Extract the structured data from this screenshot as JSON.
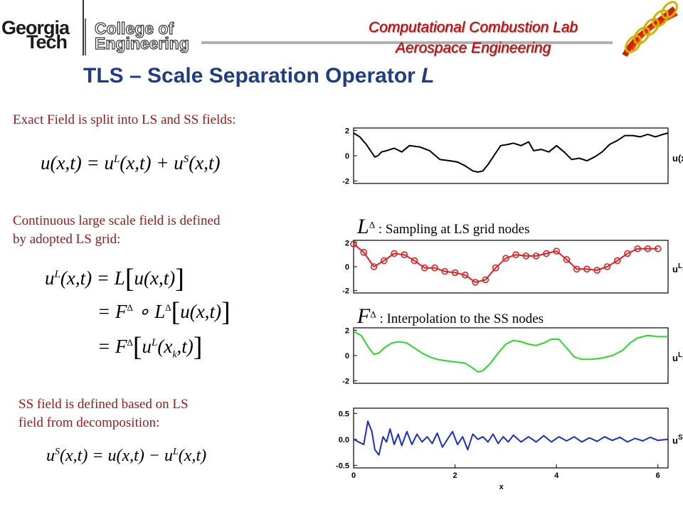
{
  "header": {
    "georgia": "Georgia",
    "tech": "Tech",
    "college_line1": "College of",
    "college_line2": "Engineering",
    "lab_line1": "Computational Combustion Lab",
    "lab_line2": "Aerospace Engineering"
  },
  "title": {
    "main": "TLS – Scale Separation Operator ",
    "italic": "L"
  },
  "text": {
    "exact_field": "Exact Field is split into LS and SS fields:",
    "continuous_1": "Continuous large scale field is defined",
    "continuous_2": "by adopted LS grid:",
    "ss_field_1": "SS field is defined based on LS",
    "ss_field_2": "field from decomposition:",
    "sampling": ": Sampling at LS grid nodes",
    "interp": ":  Interpolation to the SS nodes"
  },
  "colors": {
    "title": "#1f3c88",
    "body_text": "#a01818",
    "lab": "#cc0000",
    "ul_samples": "#e02020",
    "ul_interp": "#22dd22",
    "us": "#1a2ecc"
  },
  "chart_data": [
    {
      "type": "line",
      "ylabel": "u(x)",
      "yticks": [
        -2,
        0,
        2
      ],
      "ylim": [
        -2.2,
        2.2
      ],
      "xlim": [
        0,
        6.2
      ],
      "series": [
        {
          "x": [
            0,
            0.12,
            0.25,
            0.35,
            0.42,
            0.48,
            0.55,
            0.65,
            0.8,
            0.95,
            1.1,
            1.3,
            1.5,
            1.7,
            1.9,
            2.05,
            2.2,
            2.35,
            2.45,
            2.55,
            2.65,
            2.75,
            2.9,
            3.05,
            3.15,
            3.3,
            3.45,
            3.55,
            3.7,
            3.85,
            4.0,
            4.15,
            4.3,
            4.45,
            4.6,
            4.75,
            4.9,
            5.05,
            5.2,
            5.35,
            5.5,
            5.65,
            5.8,
            5.95,
            6.1,
            6.2
          ],
          "values": [
            1.8,
            1.5,
            0.9,
            0.3,
            -0.1,
            0.0,
            0.3,
            0.4,
            0.6,
            0.3,
            0.8,
            0.7,
            0.4,
            -0.3,
            -0.4,
            -0.5,
            -0.8,
            -1.2,
            -1.3,
            -1.2,
            -0.7,
            -0.1,
            0.8,
            0.9,
            1.0,
            0.8,
            1.1,
            0.4,
            0.5,
            0.3,
            0.8,
            0.3,
            -0.3,
            -0.2,
            -0.4,
            -0.1,
            0.3,
            0.9,
            1.2,
            1.6,
            1.6,
            1.5,
            1.7,
            1.5,
            1.7,
            1.8
          ]
        }
      ]
    },
    {
      "type": "line",
      "ylabel": "u^L(x_k)",
      "yticks": [
        -2,
        0,
        2
      ],
      "ylim": [
        -2.2,
        2.2
      ],
      "xlim": [
        0,
        6.2
      ],
      "series": [
        {
          "x": [
            0,
            0.2,
            0.4,
            0.6,
            0.8,
            1.0,
            1.2,
            1.4,
            1.6,
            1.8,
            2.0,
            2.2,
            2.4,
            2.6,
            2.8,
            3.0,
            3.2,
            3.4,
            3.6,
            3.8,
            4.0,
            4.2,
            4.4,
            4.6,
            4.8,
            5.0,
            5.2,
            5.4,
            5.6,
            5.8,
            6.0
          ],
          "values": [
            1.9,
            1.2,
            0.0,
            0.5,
            1.1,
            1.0,
            0.5,
            -0.1,
            -0.1,
            -0.4,
            -0.5,
            -0.7,
            -1.3,
            -1.1,
            -0.1,
            0.7,
            1.0,
            0.9,
            0.9,
            1.1,
            1.3,
            0.6,
            -0.2,
            -0.2,
            -0.3,
            0.0,
            0.5,
            1.1,
            1.5,
            1.5,
            1.5
          ]
        }
      ]
    },
    {
      "type": "line",
      "ylabel": "u^L(x)",
      "yticks": [
        -2,
        0,
        2
      ],
      "ylim": [
        -2.2,
        2.2
      ],
      "xlim": [
        0,
        6.2
      ],
      "series": [
        {
          "x": [
            0,
            0.15,
            0.3,
            0.4,
            0.5,
            0.6,
            0.75,
            0.9,
            1.05,
            1.2,
            1.35,
            1.5,
            1.65,
            1.8,
            2.0,
            2.2,
            2.35,
            2.45,
            2.55,
            2.7,
            2.85,
            3.0,
            3.15,
            3.3,
            3.45,
            3.6,
            3.75,
            3.9,
            4.05,
            4.2,
            4.35,
            4.5,
            4.7,
            4.9,
            5.1,
            5.3,
            5.45,
            5.6,
            5.8,
            6.0,
            6.2
          ],
          "values": [
            1.9,
            1.6,
            0.6,
            0.1,
            0.2,
            0.6,
            1.0,
            1.1,
            1.0,
            0.6,
            0.2,
            -0.1,
            -0.3,
            -0.4,
            -0.5,
            -0.6,
            -1.0,
            -1.3,
            -1.2,
            -0.6,
            0.2,
            0.9,
            1.2,
            1.1,
            0.9,
            0.8,
            1.0,
            1.3,
            1.3,
            0.6,
            -0.1,
            -0.3,
            -0.3,
            -0.2,
            0.0,
            0.4,
            1.0,
            1.4,
            1.6,
            1.5,
            1.5
          ]
        }
      ]
    },
    {
      "type": "line",
      "ylabel": "u^S(x)",
      "xlabel": "x",
      "yticks": [
        -0.5,
        0.0,
        0.5
      ],
      "yticklabels": [
        "-0.5",
        "0.0",
        "0.5"
      ],
      "xticks": [
        0,
        2,
        4,
        6
      ],
      "ylim": [
        -0.55,
        0.6
      ],
      "xlim": [
        0,
        6.2
      ],
      "series": [
        {
          "x": [
            0,
            0.1,
            0.2,
            0.28,
            0.36,
            0.42,
            0.5,
            0.58,
            0.65,
            0.72,
            0.8,
            0.88,
            0.95,
            1.05,
            1.15,
            1.25,
            1.35,
            1.45,
            1.55,
            1.65,
            1.75,
            1.85,
            1.95,
            2.05,
            2.15,
            2.25,
            2.35,
            2.45,
            2.55,
            2.65,
            2.75,
            2.85,
            2.95,
            3.05,
            3.15,
            3.3,
            3.45,
            3.6,
            3.75,
            3.9,
            4.05,
            4.2,
            4.35,
            4.5,
            4.65,
            4.8,
            4.95,
            5.1,
            5.25,
            5.4,
            5.55,
            5.7,
            5.85,
            6.0,
            6.2
          ],
          "values": [
            0.0,
            -0.05,
            -0.1,
            0.35,
            0.15,
            -0.2,
            -0.3,
            0.05,
            -0.05,
            0.2,
            -0.1,
            0.1,
            -0.12,
            0.15,
            -0.1,
            0.1,
            -0.05,
            0.05,
            -0.08,
            0.12,
            -0.15,
            0.0,
            0.15,
            -0.1,
            0.05,
            -0.2,
            0.1,
            0.0,
            0.05,
            -0.05,
            0.1,
            -0.08,
            0.05,
            -0.05,
            0.08,
            -0.05,
            0.05,
            -0.05,
            0.07,
            -0.05,
            0.05,
            -0.03,
            0.05,
            -0.05,
            0.03,
            -0.04,
            0.05,
            -0.02,
            0.04,
            -0.05,
            0.02,
            -0.03,
            0.04,
            -0.02,
            0.0
          ]
        }
      ]
    }
  ]
}
